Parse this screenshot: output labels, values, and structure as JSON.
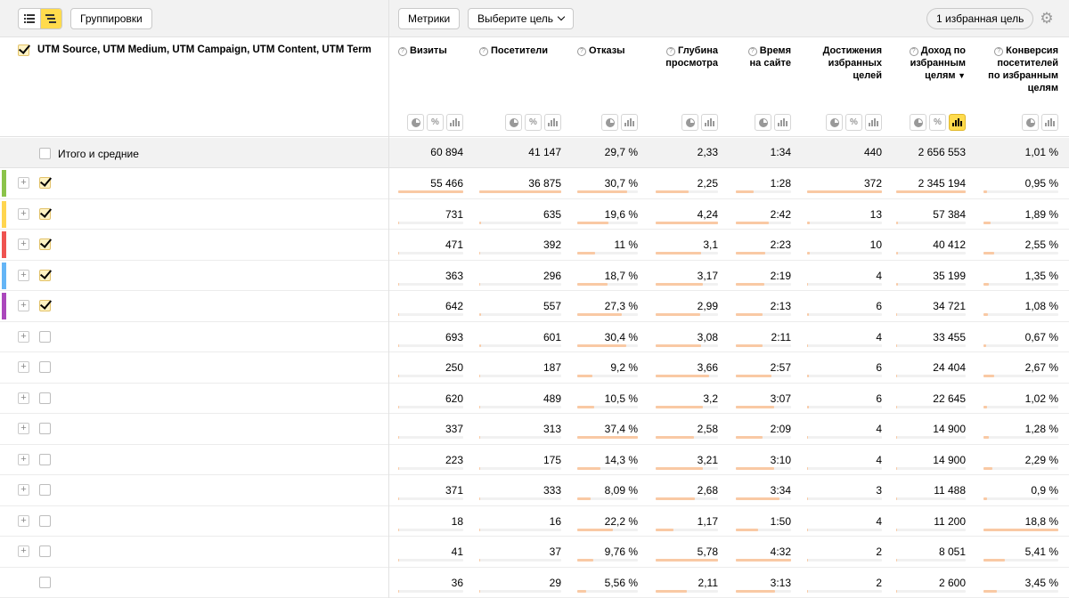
{
  "toolbar": {
    "groupings_label": "Группировки",
    "metrics_label": "Метрики",
    "select_goal_label": "Выберите цель",
    "favorite_goals_label": "1 избранная цель"
  },
  "dimension_header": "UTM Source, UTM Medium, UTM Campaign, UTM Content, UTM Term",
  "columns": [
    {
      "label": "Визиты"
    },
    {
      "label": "Посетители"
    },
    {
      "label": "Отказы"
    },
    {
      "label": "Глубина просмотра"
    },
    {
      "label": "Время на сайте"
    },
    {
      "label": "Достижения избранных целей"
    },
    {
      "label": "Доход по избранным целям",
      "sort_marker": "▼"
    },
    {
      "label": "Конверсия посетителей по избранным целям"
    }
  ],
  "totals": {
    "label": "Итого и средние",
    "values": [
      "60 894",
      "41 147",
      "29,7 %",
      "2,33",
      "1:34",
      "440",
      "2 656 553",
      "1,01 %"
    ]
  },
  "rows": [
    {
      "stripe": "#8bc34a",
      "checked": true,
      "expand": true,
      "values": [
        "55 466",
        "36 875",
        "30,7 %",
        "2,25",
        "1:28",
        "372",
        "2 345 194",
        "0,95 %"
      ]
    },
    {
      "stripe": "#ffd54f",
      "checked": true,
      "expand": true,
      "values": [
        "731",
        "635",
        "19,6 %",
        "4,24",
        "2:42",
        "13",
        "57 384",
        "1,89 %"
      ]
    },
    {
      "stripe": "#ef5350",
      "checked": true,
      "expand": true,
      "values": [
        "471",
        "392",
        "11 %",
        "3,1",
        "2:23",
        "10",
        "40 412",
        "2,55 %"
      ]
    },
    {
      "stripe": "#64b5f6",
      "checked": true,
      "expand": true,
      "values": [
        "363",
        "296",
        "18,7 %",
        "3,17",
        "2:19",
        "4",
        "35 199",
        "1,35 %"
      ]
    },
    {
      "stripe": "#ab47bc",
      "checked": true,
      "expand": true,
      "values": [
        "642",
        "557",
        "27,3 %",
        "2,99",
        "2:13",
        "6",
        "34 721",
        "1,08 %"
      ]
    },
    {
      "stripe": "",
      "checked": false,
      "expand": true,
      "values": [
        "693",
        "601",
        "30,4 %",
        "3,08",
        "2:11",
        "4",
        "33 455",
        "0,67 %"
      ]
    },
    {
      "stripe": "",
      "checked": false,
      "expand": true,
      "values": [
        "250",
        "187",
        "9,2 %",
        "3,66",
        "2:57",
        "6",
        "24 404",
        "2,67 %"
      ]
    },
    {
      "stripe": "",
      "checked": false,
      "expand": true,
      "values": [
        "620",
        "489",
        "10,5 %",
        "3,2",
        "3:07",
        "6",
        "22 645",
        "1,02 %"
      ]
    },
    {
      "stripe": "",
      "checked": false,
      "expand": true,
      "values": [
        "337",
        "313",
        "37,4 %",
        "2,58",
        "2:09",
        "4",
        "14 900",
        "1,28 %"
      ]
    },
    {
      "stripe": "",
      "checked": false,
      "expand": true,
      "values": [
        "223",
        "175",
        "14,3 %",
        "3,21",
        "3:10",
        "4",
        "14 900",
        "2,29 %"
      ]
    },
    {
      "stripe": "",
      "checked": false,
      "expand": true,
      "values": [
        "371",
        "333",
        "8,09 %",
        "2,68",
        "3:34",
        "3",
        "11 488",
        "0,9 %"
      ]
    },
    {
      "stripe": "",
      "checked": false,
      "expand": true,
      "values": [
        "18",
        "16",
        "22,2 %",
        "1,17",
        "1:50",
        "4",
        "11 200",
        "18,8 %"
      ]
    },
    {
      "stripe": "",
      "checked": false,
      "expand": true,
      "values": [
        "41",
        "37",
        "9,76 %",
        "5,78",
        "4:32",
        "2",
        "8 051",
        "5,41 %"
      ]
    },
    {
      "stripe": "",
      "checked": false,
      "expand": false,
      "values": [
        "36",
        "29",
        "5,56 %",
        "2,11",
        "3:13",
        "2",
        "2 600",
        "3,45 %"
      ]
    }
  ],
  "bar_fractions": [
    [
      1.0,
      1.0,
      0.82,
      0.53,
      0.33,
      1.0,
      1.0,
      0.05
    ],
    [
      0.02,
      0.02,
      0.52,
      1.0,
      0.6,
      0.03,
      0.03,
      0.1
    ],
    [
      0.01,
      0.01,
      0.29,
      0.73,
      0.53,
      0.03,
      0.02,
      0.14
    ],
    [
      0.01,
      0.01,
      0.5,
      0.75,
      0.52,
      0.01,
      0.02,
      0.07
    ],
    [
      0.01,
      0.02,
      0.73,
      0.71,
      0.49,
      0.02,
      0.01,
      0.06
    ],
    [
      0.01,
      0.02,
      0.81,
      0.73,
      0.48,
      0.01,
      0.01,
      0.04
    ],
    [
      0.0,
      0.01,
      0.25,
      0.86,
      0.65,
      0.02,
      0.01,
      0.14
    ],
    [
      0.01,
      0.01,
      0.28,
      0.75,
      0.69,
      0.02,
      0.01,
      0.05
    ],
    [
      0.01,
      0.01,
      1.0,
      0.61,
      0.48,
      0.01,
      0.01,
      0.07
    ],
    [
      0.0,
      0.0,
      0.38,
      0.76,
      0.7,
      0.01,
      0.01,
      0.12
    ],
    [
      0.01,
      0.01,
      0.22,
      0.63,
      0.79,
      0.01,
      0.0,
      0.05
    ],
    [
      0.0,
      0.0,
      0.59,
      0.28,
      0.4,
      0.01,
      0.0,
      1.0
    ],
    [
      0.0,
      0.0,
      0.26,
      1.0,
      1.0,
      0.01,
      0.0,
      0.29
    ],
    [
      0.0,
      0.0,
      0.15,
      0.5,
      0.71,
      0.01,
      0.0,
      0.18
    ]
  ],
  "colors": {
    "accent": "#ffdb4d",
    "bar": "#f9c9a4",
    "totals_bg": "#f2f2f2"
  }
}
